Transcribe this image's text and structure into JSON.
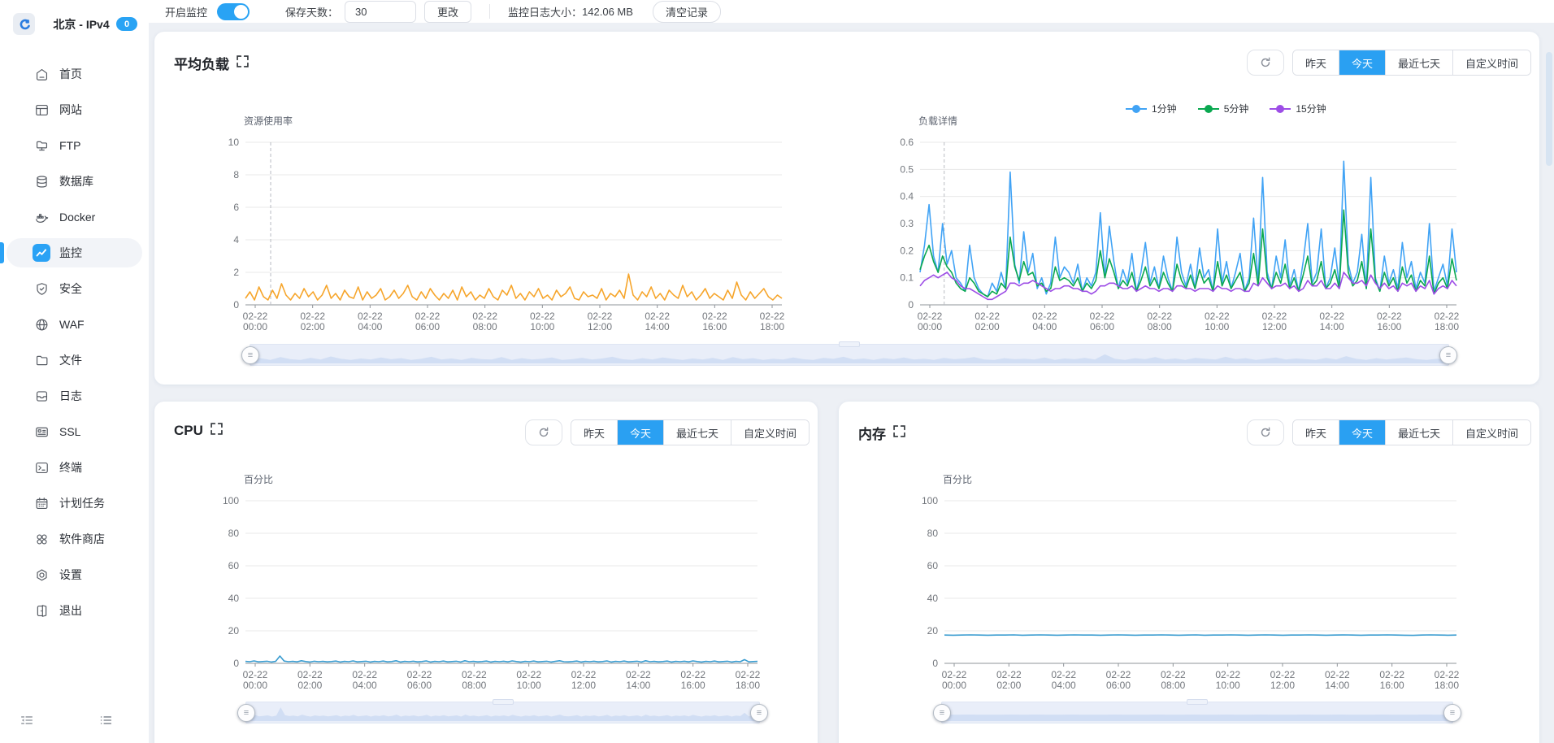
{
  "app": {
    "accent": "#29a3f4"
  },
  "sidebar": {
    "server_name": "北京 - IPv4",
    "badge": "0",
    "items": [
      {
        "label": "首页",
        "icon": "home-icon"
      },
      {
        "label": "网站",
        "icon": "website-icon"
      },
      {
        "label": "FTP",
        "icon": "ftp-icon"
      },
      {
        "label": "数据库",
        "icon": "database-icon"
      },
      {
        "label": "Docker",
        "icon": "docker-icon"
      },
      {
        "label": "监控",
        "icon": "monitor-icon",
        "active": true
      },
      {
        "label": "安全",
        "icon": "security-shield-icon"
      },
      {
        "label": "WAF",
        "icon": "waf-globe-icon"
      },
      {
        "label": "文件",
        "icon": "files-folder-icon"
      },
      {
        "label": "日志",
        "icon": "logs-icon"
      },
      {
        "label": "SSL",
        "icon": "ssl-card-icon"
      },
      {
        "label": "终端",
        "icon": "terminal-icon"
      },
      {
        "label": "计划任务",
        "icon": "cron-calendar-icon"
      },
      {
        "label": "软件商店",
        "icon": "appstore-icon"
      },
      {
        "label": "设置",
        "icon": "settings-gear-icon"
      },
      {
        "label": "退出",
        "icon": "logout-door-icon"
      }
    ]
  },
  "topbar": {
    "monitor_toggle_label": "开启监控",
    "toggle_on": true,
    "save_days_label": "保存天数：",
    "save_days_value": "30",
    "change_button": "更改",
    "log_size_label": "监控日志大小：",
    "log_size_value": "142.06 MB",
    "clear_button": "清空记录"
  },
  "time_filter": {
    "options": [
      "昨天",
      "今天",
      "最近七天",
      "自定义时间"
    ],
    "selected": "今天"
  },
  "cards": {
    "load": {
      "title": "平均负载",
      "legend": [
        {
          "name": "1分钟",
          "color": "#41a3f5"
        },
        {
          "name": "5分钟",
          "color": "#0aa850"
        },
        {
          "name": "15分钟",
          "color": "#9d4de6"
        }
      ]
    },
    "cpu": {
      "title": "CPU"
    },
    "mem": {
      "title": "内存"
    }
  },
  "chart_data": [
    {
      "id": "resource",
      "type": "line",
      "title": "资源使用率",
      "ylim": [
        0,
        10
      ],
      "yticks": [
        0,
        2,
        4,
        6,
        8,
        10
      ],
      "x_date": "02-22",
      "x_times": [
        "00:00",
        "02:00",
        "04:00",
        "06:00",
        "08:00",
        "10:00",
        "12:00",
        "14:00",
        "16:00",
        "18:00"
      ],
      "pointer_frac": 0.047,
      "dz_max": 4,
      "series": [
        {
          "name": "资源使用率",
          "color": "#f6a52b",
          "values": [
            0.4,
            0.8,
            0.3,
            1.1,
            0.5,
            0.3,
            0.9,
            0.4,
            1.3,
            0.6,
            0.3,
            0.7,
            0.4,
            1.0,
            0.5,
            0.8,
            0.3,
            0.6,
            1.2,
            0.4,
            0.7,
            0.3,
            0.9,
            0.5,
            0.4,
            1.1,
            0.3,
            0.8,
            0.4,
            0.6,
            1.0,
            0.3,
            0.5,
            0.9,
            0.4,
            0.7,
            1.2,
            0.5,
            0.3,
            0.8,
            0.4,
            1.0,
            0.6,
            0.3,
            0.7,
            0.4,
            0.9,
            0.3,
            1.1,
            0.5,
            0.8,
            0.3,
            0.6,
            0.4,
            1.0,
            0.5,
            0.3,
            0.9,
            0.6,
            1.2,
            0.4,
            0.7,
            0.3,
            0.8,
            0.5,
            1.0,
            0.4,
            0.6,
            0.3,
            0.9,
            0.5,
            0.7,
            1.1,
            0.4,
            0.3,
            0.8,
            0.5,
            0.6,
            0.4,
            1.0,
            0.3,
            0.7,
            0.5,
            0.9,
            0.4,
            1.9,
            0.6,
            0.3,
            0.8,
            0.5,
            1.1,
            0.4,
            0.7,
            0.3,
            0.9,
            0.6,
            0.4,
            1.2,
            0.5,
            0.8,
            0.3,
            0.6,
            1.0,
            0.4,
            0.7,
            0.5,
            0.3,
            0.9,
            0.4,
            1.4,
            0.6,
            0.3,
            0.8,
            0.4,
            0.7,
            1.0,
            0.5,
            0.3,
            0.6,
            0.4
          ]
        }
      ]
    },
    {
      "id": "load-detail",
      "type": "line",
      "title": "负载详情",
      "ylim": [
        0,
        0.6
      ],
      "yticks": [
        0,
        0.1,
        0.2,
        0.3,
        0.4,
        0.5,
        0.6
      ],
      "x_date": "02-22",
      "x_times": [
        "00:00",
        "02:00",
        "04:00",
        "06:00",
        "08:00",
        "10:00",
        "12:00",
        "14:00",
        "16:00",
        "18:00"
      ],
      "pointer_frac": 0.045,
      "dz_max": 0.6,
      "series": [
        {
          "name": "1分钟",
          "color": "#41a3f5",
          "values": [
            0.12,
            0.22,
            0.37,
            0.18,
            0.12,
            0.3,
            0.15,
            0.2,
            0.1,
            0.08,
            0.05,
            0.22,
            0.1,
            0.06,
            0.04,
            0.03,
            0.08,
            0.05,
            0.12,
            0.06,
            0.49,
            0.15,
            0.08,
            0.27,
            0.12,
            0.19,
            0.06,
            0.1,
            0.04,
            0.08,
            0.25,
            0.1,
            0.14,
            0.12,
            0.08,
            0.15,
            0.05,
            0.1,
            0.07,
            0.12,
            0.34,
            0.1,
            0.29,
            0.16,
            0.06,
            0.13,
            0.08,
            0.19,
            0.05,
            0.12,
            0.23,
            0.08,
            0.14,
            0.06,
            0.18,
            0.1,
            0.05,
            0.25,
            0.12,
            0.07,
            0.15,
            0.06,
            0.21,
            0.1,
            0.13,
            0.05,
            0.28,
            0.08,
            0.16,
            0.06,
            0.12,
            0.19,
            0.05,
            0.1,
            0.32,
            0.08,
            0.47,
            0.12,
            0.06,
            0.18,
            0.1,
            0.24,
            0.07,
            0.13,
            0.05,
            0.16,
            0.3,
            0.08,
            0.12,
            0.28,
            0.06,
            0.1,
            0.21,
            0.07,
            0.53,
            0.15,
            0.08,
            0.12,
            0.26,
            0.06,
            0.47,
            0.1,
            0.05,
            0.18,
            0.08,
            0.13,
            0.06,
            0.23,
            0.1,
            0.16,
            0.06,
            0.12,
            0.08,
            0.3,
            0.05,
            0.1,
            0.15,
            0.07,
            0.28,
            0.12
          ]
        },
        {
          "name": "5分钟",
          "color": "#0aa850",
          "values": [
            0.13,
            0.18,
            0.22,
            0.16,
            0.12,
            0.18,
            0.14,
            0.12,
            0.08,
            0.06,
            0.05,
            0.1,
            0.08,
            0.05,
            0.04,
            0.03,
            0.05,
            0.04,
            0.08,
            0.06,
            0.25,
            0.14,
            0.09,
            0.16,
            0.11,
            0.12,
            0.07,
            0.08,
            0.05,
            0.06,
            0.14,
            0.09,
            0.1,
            0.09,
            0.07,
            0.1,
            0.05,
            0.08,
            0.06,
            0.09,
            0.2,
            0.1,
            0.17,
            0.12,
            0.06,
            0.09,
            0.07,
            0.12,
            0.05,
            0.09,
            0.14,
            0.07,
            0.1,
            0.06,
            0.12,
            0.08,
            0.05,
            0.15,
            0.09,
            0.06,
            0.11,
            0.06,
            0.13,
            0.08,
            0.1,
            0.05,
            0.16,
            0.07,
            0.11,
            0.06,
            0.09,
            0.12,
            0.05,
            0.08,
            0.19,
            0.07,
            0.28,
            0.1,
            0.06,
            0.12,
            0.08,
            0.15,
            0.06,
            0.1,
            0.05,
            0.11,
            0.18,
            0.07,
            0.09,
            0.16,
            0.06,
            0.08,
            0.13,
            0.06,
            0.35,
            0.12,
            0.07,
            0.09,
            0.16,
            0.06,
            0.28,
            0.09,
            0.05,
            0.12,
            0.07,
            0.1,
            0.05,
            0.14,
            0.08,
            0.11,
            0.05,
            0.09,
            0.07,
            0.18,
            0.04,
            0.08,
            0.1,
            0.06,
            0.17,
            0.09
          ]
        },
        {
          "name": "15分钟",
          "color": "#9d4de6",
          "values": [
            0.07,
            0.09,
            0.1,
            0.11,
            0.1,
            0.11,
            0.12,
            0.1,
            0.09,
            0.07,
            0.06,
            0.06,
            0.05,
            0.04,
            0.03,
            0.02,
            0.02,
            0.03,
            0.04,
            0.05,
            0.08,
            0.08,
            0.07,
            0.08,
            0.08,
            0.09,
            0.08,
            0.07,
            0.06,
            0.05,
            0.06,
            0.06,
            0.07,
            0.07,
            0.06,
            0.06,
            0.05,
            0.05,
            0.04,
            0.05,
            0.07,
            0.07,
            0.08,
            0.08,
            0.07,
            0.06,
            0.06,
            0.07,
            0.05,
            0.06,
            0.07,
            0.06,
            0.06,
            0.05,
            0.06,
            0.06,
            0.05,
            0.07,
            0.07,
            0.06,
            0.06,
            0.05,
            0.06,
            0.06,
            0.06,
            0.05,
            0.07,
            0.06,
            0.06,
            0.05,
            0.06,
            0.06,
            0.05,
            0.05,
            0.08,
            0.07,
            0.1,
            0.08,
            0.06,
            0.07,
            0.07,
            0.08,
            0.06,
            0.07,
            0.05,
            0.06,
            0.09,
            0.07,
            0.07,
            0.09,
            0.06,
            0.06,
            0.08,
            0.06,
            0.12,
            0.1,
            0.08,
            0.08,
            0.09,
            0.07,
            0.11,
            0.08,
            0.06,
            0.08,
            0.06,
            0.07,
            0.05,
            0.08,
            0.07,
            0.08,
            0.05,
            0.07,
            0.06,
            0.09,
            0.04,
            0.06,
            0.07,
            0.06,
            0.09,
            0.07
          ]
        }
      ]
    },
    {
      "id": "cpu",
      "type": "line",
      "title": "百分比",
      "ylim": [
        0,
        100
      ],
      "yticks": [
        0,
        20,
        40,
        60,
        80,
        100
      ],
      "x_date": "02-22",
      "x_times": [
        "00:00",
        "02:00",
        "04:00",
        "06:00",
        "08:00",
        "10:00",
        "12:00",
        "14:00",
        "16:00",
        "18:00"
      ],
      "dz_max": 5.5,
      "series": [
        {
          "name": "CPU",
          "color": "#3a9cd0",
          "values": [
            1.2,
            1.0,
            1.5,
            0.9,
            1.1,
            1.3,
            0.8,
            1.2,
            4.5,
            1.4,
            1.0,
            1.2,
            0.9,
            1.6,
            1.1,
            0.8,
            1.3,
            1.0,
            1.2,
            0.9,
            1.1,
            1.4,
            0.8,
            1.2,
            1.0,
            1.5,
            0.9,
            1.1,
            1.3,
            0.8,
            1.2,
            1.0,
            1.4,
            0.9,
            1.1,
            1.6,
            0.8,
            1.2,
            1.0,
            1.3,
            0.9,
            1.1,
            1.5,
            0.8,
            1.2,
            1.0,
            1.4,
            0.9,
            1.1,
            1.3,
            0.8,
            1.6,
            1.0,
            1.2,
            0.9,
            1.1,
            1.4,
            0.8,
            1.2,
            1.0,
            1.3,
            0.9,
            1.5,
            1.1,
            0.8,
            1.2,
            1.0,
            1.4,
            0.9,
            1.1,
            1.3,
            0.8,
            1.2,
            1.6,
            1.0,
            0.9,
            1.1,
            1.4,
            0.8,
            1.2,
            1.0,
            1.3,
            0.9,
            1.1,
            1.5,
            0.8,
            1.2,
            1.0,
            1.4,
            0.9,
            1.1,
            1.3,
            0.8,
            1.6,
            1.0,
            1.2,
            0.9,
            1.1,
            1.4,
            0.8,
            1.2,
            1.0,
            1.3,
            0.9,
            1.5,
            1.1,
            0.8,
            1.2,
            1.0,
            1.4,
            0.9,
            1.1,
            1.3,
            0.8,
            1.2,
            1.0,
            2.3,
            0.9,
            1.1,
            1.2
          ]
        }
      ]
    },
    {
      "id": "mem",
      "type": "line",
      "title": "百分比",
      "ylim": [
        0,
        100
      ],
      "yticks": [
        0,
        20,
        40,
        60,
        80,
        100
      ],
      "x_date": "02-22",
      "x_times": [
        "00:00",
        "02:00",
        "04:00",
        "06:00",
        "08:00",
        "10:00",
        "12:00",
        "14:00",
        "16:00",
        "18:00"
      ],
      "dz_max": 60,
      "series": [
        {
          "name": "内存",
          "color": "#3a9cd0",
          "values": [
            17.4,
            17.3,
            17.4,
            17.5,
            17.4,
            17.3,
            17.4,
            17.4,
            17.5,
            17.3,
            17.4,
            17.5,
            17.4,
            17.3,
            17.4,
            17.5,
            17.4,
            17.4,
            17.3,
            17.4,
            17.5,
            17.4,
            17.3,
            17.4,
            17.4,
            17.5,
            17.4,
            17.3,
            17.4,
            17.5,
            17.3,
            17.4,
            17.4,
            17.5,
            17.4,
            17.3,
            17.4,
            17.5,
            17.4,
            17.3,
            17.4,
            17.4,
            17.5,
            17.4,
            17.3,
            17.4,
            17.5,
            17.4,
            17.3,
            17.4,
            17.4,
            17.5,
            17.4,
            17.3,
            17.2,
            17.4,
            17.5,
            17.4,
            17.3,
            17.4
          ]
        }
      ]
    }
  ]
}
